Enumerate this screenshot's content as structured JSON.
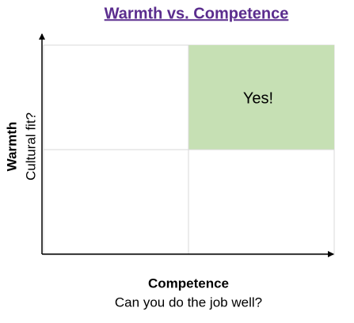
{
  "header": {
    "title": "Warmth vs. Competence"
  },
  "quadrant": {
    "label": "Yes!"
  },
  "axes": {
    "y": {
      "label": "Warmth",
      "sublabel": "Cultural fit?"
    },
    "x": {
      "label": "Competence",
      "sublabel": "Can you do the job well?"
    }
  }
}
